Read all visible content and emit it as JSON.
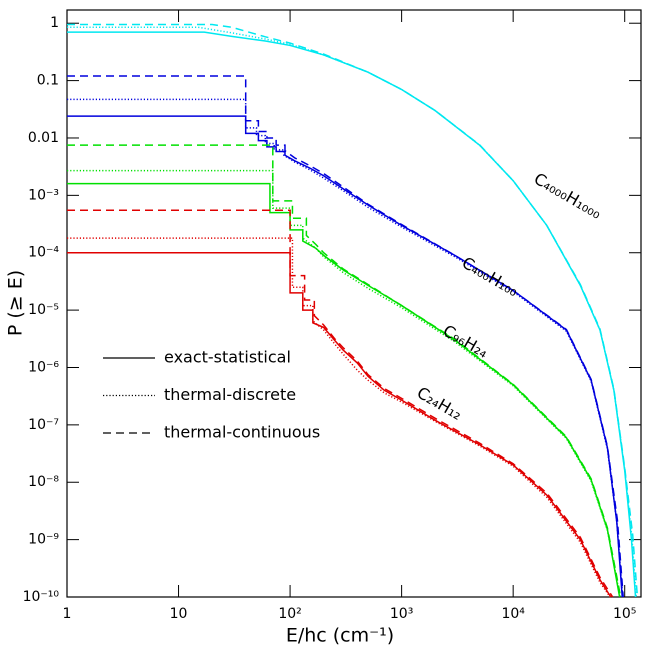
{
  "chart_data": {
    "type": "line",
    "xlabel": "E/hc    (cm⁻¹)",
    "ylabel": "P (≥ E)",
    "xscale": "log",
    "yscale": "log",
    "xlim": [
      1,
      140000
    ],
    "ylim": [
      1e-10,
      1.7
    ],
    "xticks": [
      1,
      10,
      {
        "value": 100,
        "label": "10²"
      },
      {
        "value": 1000,
        "label": "10³"
      },
      {
        "value": 10000,
        "label": "10⁴"
      },
      {
        "value": 100000,
        "label": "10⁵"
      }
    ],
    "yticks": [
      {
        "value": 1e-10,
        "label": "10⁻¹⁰"
      },
      {
        "value": 1e-09,
        "label": "10⁻⁹"
      },
      {
        "value": 1e-08,
        "label": "10⁻⁸"
      },
      {
        "value": 1e-07,
        "label": "10⁻⁷"
      },
      {
        "value": 1e-06,
        "label": "10⁻⁶"
      },
      {
        "value": 1e-05,
        "label": "10⁻⁵"
      },
      {
        "value": 0.0001,
        "label": "10⁻⁴"
      },
      {
        "value": 0.001,
        "label": "10⁻³"
      },
      0.01,
      0.1,
      1
    ],
    "grid": false,
    "legend": [
      {
        "name": "exact-statistical",
        "dash": "solid"
      },
      {
        "name": "thermal-discrete",
        "dash": "dotted"
      },
      {
        "name": "thermal-continuous",
        "dash": "dashed"
      }
    ],
    "series": [
      {
        "name": "C₄₀₀₀H₁₀₀₀",
        "color": "#00e8f0",
        "curves": [
          {
            "x": [
              1,
              17,
              30,
              60,
              100,
              200,
              500,
              1000,
              2000,
              5000,
              10000,
              20000,
              40000,
              60000,
              80000,
              100000,
              115000,
              125000
            ],
            "values": [
              0.7,
              0.7,
              0.59,
              0.49,
              0.41,
              0.28,
              0.14,
              0.07,
              0.03,
              0.0075,
              0.0018,
              0.0003,
              2.7e-05,
              4.5e-06,
              4e-07,
              1.6e-08,
              1e-09,
              1e-10
            ]
          },
          {
            "x": [
              1,
              15,
              30,
              60,
              100,
              200,
              500,
              1000,
              2000,
              5000,
              10000,
              20000,
              40000,
              60000,
              80000,
              100000,
              116000,
              127000
            ],
            "values": [
              0.85,
              0.85,
              0.68,
              0.53,
              0.43,
              0.28,
              0.14,
              0.07,
              0.03,
              0.0075,
              0.0018,
              0.0003,
              2.7e-05,
              4.5e-06,
              4e-07,
              1.7e-08,
              1.1e-09,
              1e-10
            ]
          },
          {
            "x": [
              1,
              20,
              30,
              60,
              100,
              200,
              500,
              1000,
              2000,
              5000,
              10000,
              20000,
              40000,
              60000,
              80000,
              100000,
              118000,
              130000
            ],
            "values": [
              0.95,
              0.95,
              0.85,
              0.58,
              0.45,
              0.29,
              0.14,
              0.07,
              0.03,
              0.0076,
              0.0018,
              0.0003,
              2.8e-05,
              4.7e-06,
              4.2e-07,
              1.8e-08,
              1.2e-09,
              1e-10
            ]
          }
        ]
      },
      {
        "name": "C₄₀₀H₁₀₀",
        "color": "#0000dd",
        "curves": [
          {
            "x": [
              1,
              40,
              40,
              52,
              52,
              62,
              62,
              75,
              75,
              90,
              90,
              110,
              150,
              200,
              300,
              500,
              1000,
              3000,
              10000,
              30000,
              50000,
              70000,
              85000,
              95000
            ],
            "values": [
              0.024,
              0.024,
              0.012,
              0.012,
              0.009,
              0.009,
              0.007,
              0.007,
              0.0058,
              0.0058,
              0.005,
              0.004,
              0.003,
              0.0022,
              0.0013,
              0.00068,
              0.0003,
              9e-05,
              2.2e-05,
              4.5e-06,
              6e-07,
              4e-08,
              2e-09,
              1e-10
            ]
          },
          {
            "x": [
              1,
              40,
              40,
              50,
              50,
              60,
              60,
              72,
              72,
              88,
              88,
              110,
              150,
              200,
              300,
              500,
              1000,
              3000,
              10000,
              30000,
              50000,
              70000,
              85000,
              96000
            ],
            "values": [
              0.047,
              0.047,
              0.015,
              0.015,
              0.011,
              0.011,
              0.008,
              0.008,
              0.0062,
              0.0062,
              0.005,
              0.0038,
              0.0028,
              0.002,
              0.0012,
              0.00062,
              0.00028,
              8.5e-05,
              2.1e-05,
              4.3e-06,
              5.8e-07,
              3.8e-08,
              2e-09,
              1e-10
            ]
          },
          {
            "x": [
              1,
              40,
              40,
              52,
              52,
              62,
              62,
              75,
              75,
              90,
              90,
              110,
              150,
              200,
              300,
              500,
              1000,
              3000,
              10000,
              30000,
              50000,
              70000,
              86000,
              97000
            ],
            "values": [
              0.12,
              0.12,
              0.02,
              0.02,
              0.013,
              0.013,
              0.01,
              0.01,
              0.0075,
              0.0075,
              0.006,
              0.0045,
              0.0033,
              0.0024,
              0.0014,
              0.0007,
              0.00031,
              9e-05,
              2.2e-05,
              4.6e-06,
              6.2e-07,
              4.2e-08,
              2.2e-09,
              1e-10
            ]
          }
        ]
      },
      {
        "name": "C₉₆H₂₄",
        "color": "#00e000",
        "curves": [
          {
            "x": [
              1,
              66,
              66,
              100,
              100,
              130,
              130,
              170,
              200,
              300,
              500,
              1000,
              3000,
              10000,
              30000,
              50000,
              70000,
              90000
            ],
            "values": [
              0.0016,
              0.0016,
              0.0005,
              0.0005,
              0.00025,
              0.00025,
              0.00016,
              0.00012,
              9e-05,
              5e-05,
              2.7e-05,
              1.2e-05,
              3e-06,
              5e-07,
              6e-08,
              1.1e-08,
              1.5e-09,
              1e-10
            ]
          },
          {
            "x": [
              1,
              70,
              70,
              100,
              100,
              130,
              130,
              170,
              200,
              300,
              500,
              1000,
              3000,
              10000,
              30000,
              50000,
              70000,
              91000
            ],
            "values": [
              0.0027,
              0.0027,
              0.0006,
              0.0006,
              0.0003,
              0.0003,
              0.00018,
              0.00012,
              8.5e-05,
              4.5e-05,
              2.4e-05,
              1.1e-05,
              2.8e-06,
              4.8e-07,
              5.8e-08,
              1.05e-08,
              1.45e-09,
              1e-10
            ]
          },
          {
            "x": [
              1,
              70,
              70,
              105,
              105,
              140,
              140,
              170,
              200,
              300,
              500,
              1000,
              3000,
              10000,
              30000,
              50000,
              70000,
              92000
            ],
            "values": [
              0.0075,
              0.0075,
              0.0008,
              0.0008,
              0.0004,
              0.0004,
              0.0002,
              0.00014,
              0.0001,
              5.2e-05,
              2.8e-05,
              1.2e-05,
              3.1e-06,
              5.1e-07,
              6.2e-08,
              1.15e-08,
              1.6e-09,
              1e-10
            ]
          }
        ]
      },
      {
        "name": "C₂₄H₁₂",
        "color": "#e00000",
        "curves": [
          {
            "x": [
              1,
              100,
              100,
              130,
              130,
              160,
              160,
              200,
              250,
              300,
              400,
              500,
              700,
              1000,
              2000,
              5000,
              10000,
              20000,
              40000,
              60000,
              75000
            ],
            "values": [
              0.0001,
              0.0001,
              2e-05,
              2e-05,
              1e-05,
              1e-05,
              6e-06,
              5e-06,
              3e-06,
              2e-06,
              1.2e-06,
              7e-07,
              4e-07,
              2.7e-07,
              1.2e-07,
              4.5e-08,
              2e-08,
              6e-09,
              1e-09,
              2e-10,
              1e-10
            ]
          },
          {
            "x": [
              1,
              105,
              105,
              130,
              130,
              160,
              160,
              200,
              250,
              300,
              400,
              500,
              700,
              1000,
              2000,
              5000,
              10000,
              20000,
              40000,
              60000,
              74000
            ],
            "values": [
              0.00018,
              0.00018,
              2.5e-05,
              2.5e-05,
              1.2e-05,
              1.2e-05,
              6.5e-06,
              4.5e-06,
              2.6e-06,
              1.7e-06,
              9e-07,
              6e-07,
              3.6e-07,
              2.5e-07,
              1.15e-07,
              4.3e-08,
              1.9e-08,
              5.5e-09,
              9e-10,
              1.8e-10,
              1e-10
            ]
          },
          {
            "x": [
              1,
              100,
              100,
              135,
              135,
              165,
              165,
              200,
              250,
              300,
              400,
              500,
              700,
              1000,
              2000,
              5000,
              10000,
              20000,
              40000,
              60000,
              78000
            ],
            "values": [
              0.00055,
              0.00055,
              4e-05,
              4e-05,
              1.5e-05,
              1.5e-05,
              8e-06,
              5.5e-06,
              3.2e-06,
              2.2e-06,
              1.3e-06,
              7.5e-07,
              4.3e-07,
              2.9e-07,
              1.3e-07,
              4.8e-08,
              2.1e-08,
              6.5e-09,
              1.1e-09,
              2.2e-10,
              1e-10
            ]
          }
        ]
      }
    ]
  }
}
